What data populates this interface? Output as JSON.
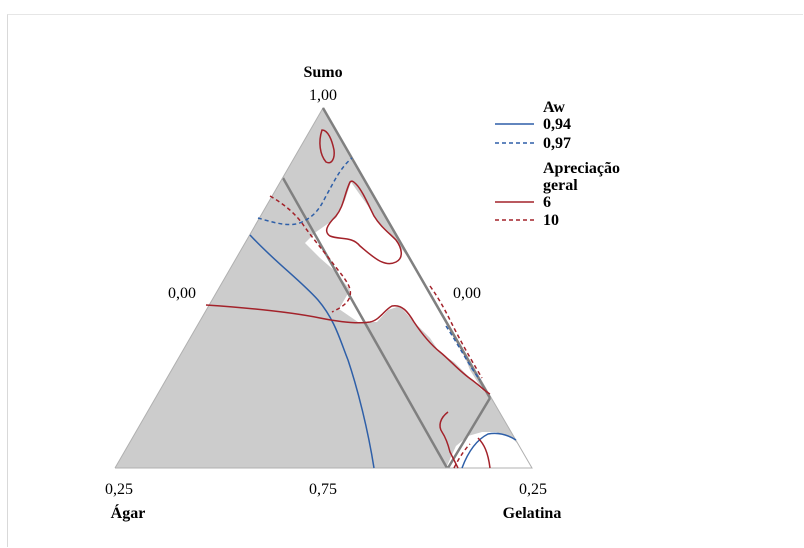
{
  "chart_data": {
    "type": "ternary-contour",
    "title": "",
    "vertices": {
      "top": {
        "name": "Sumo",
        "value": "1,00"
      },
      "left": {
        "name": "Ágar",
        "value": "0,25"
      },
      "right": {
        "name": "Gelatina",
        "value": "0,25"
      }
    },
    "side_labels": {
      "left": "0,00",
      "right": "0,00",
      "bottom": "0,75"
    },
    "legend": {
      "placement": "right",
      "groups": [
        {
          "title": "Aw",
          "items": [
            {
              "label": "0,94",
              "color": "#2e5fa8",
              "dash": "solid"
            },
            {
              "label": "0,97",
              "color": "#2e5fa8",
              "dash": "dashed"
            }
          ]
        },
        {
          "title_line1": "Apreciação",
          "title_line2": "geral",
          "items": [
            {
              "label": "6",
              "color": "#a3222a",
              "dash": "solid"
            },
            {
              "label": "10",
              "color": "#a3222a",
              "dash": "dashed"
            }
          ]
        }
      ]
    },
    "colors": {
      "fill": "#cccccc",
      "outline": "#808080",
      "aw": "#2e5fa8",
      "apreciacao": "#a3222a"
    }
  }
}
